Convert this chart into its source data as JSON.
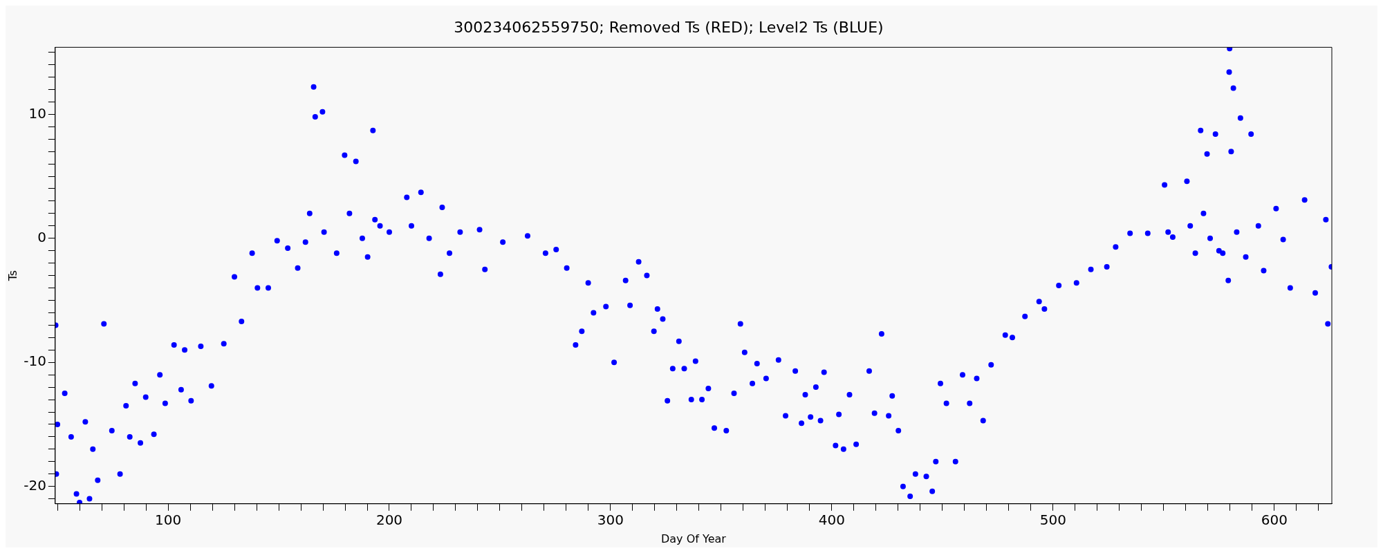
{
  "chart_data": {
    "type": "scatter",
    "title": "300234062559750; Removed Ts (RED); Level2 Ts (BLUE)",
    "xlabel": "Day Of Year",
    "ylabel": "Ts",
    "marker": "circle",
    "xlim": [
      49,
      626
    ],
    "ylim": [
      -21.4,
      15.4
    ],
    "xticks": [
      {
        "value": 50,
        "label": null
      },
      {
        "value": 60,
        "label": null
      },
      {
        "value": 70,
        "label": null
      },
      {
        "value": 80,
        "label": null
      },
      {
        "value": 90,
        "label": null
      },
      100,
      {
        "value": 110,
        "label": null
      },
      {
        "value": 120,
        "label": null
      },
      {
        "value": 130,
        "label": null
      },
      {
        "value": 140,
        "label": null
      },
      {
        "value": 150,
        "label": null
      },
      {
        "value": 160,
        "label": null
      },
      {
        "value": 170,
        "label": null
      },
      {
        "value": 180,
        "label": null
      },
      {
        "value": 190,
        "label": null
      },
      200,
      {
        "value": 210,
        "label": null
      },
      {
        "value": 220,
        "label": null
      },
      {
        "value": 230,
        "label": null
      },
      {
        "value": 240,
        "label": null
      },
      {
        "value": 250,
        "label": null
      },
      {
        "value": 260,
        "label": null
      },
      {
        "value": 270,
        "label": null
      },
      {
        "value": 280,
        "label": null
      },
      {
        "value": 290,
        "label": null
      },
      300,
      {
        "value": 310,
        "label": null
      },
      {
        "value": 320,
        "label": null
      },
      {
        "value": 330,
        "label": null
      },
      {
        "value": 340,
        "label": null
      },
      {
        "value": 350,
        "label": null
      },
      {
        "value": 360,
        "label": null
      },
      {
        "value": 370,
        "label": null
      },
      {
        "value": 380,
        "label": null
      },
      {
        "value": 390,
        "label": null
      },
      400,
      {
        "value": 410,
        "label": null
      },
      {
        "value": 420,
        "label": null
      },
      {
        "value": 430,
        "label": null
      },
      {
        "value": 440,
        "label": null
      },
      {
        "value": 450,
        "label": null
      },
      {
        "value": 460,
        "label": null
      },
      {
        "value": 470,
        "label": null
      },
      {
        "value": 480,
        "label": null
      },
      {
        "value": 490,
        "label": null
      },
      500,
      {
        "value": 510,
        "label": null
      },
      {
        "value": 520,
        "label": null
      },
      {
        "value": 530,
        "label": null
      },
      {
        "value": 540,
        "label": null
      },
      {
        "value": 550,
        "label": null
      },
      {
        "value": 560,
        "label": null
      },
      {
        "value": 570,
        "label": null
      },
      {
        "value": 580,
        "label": null
      },
      {
        "value": 590,
        "label": null
      },
      600,
      {
        "value": 610,
        "label": null
      },
      {
        "value": 620,
        "label": null
      }
    ],
    "yticks": [
      {
        "value": -21,
        "label": null
      },
      -20,
      {
        "value": -19,
        "label": null
      },
      {
        "value": -18,
        "label": null
      },
      {
        "value": -17,
        "label": null
      },
      {
        "value": -16,
        "label": null
      },
      {
        "value": -15,
        "label": null
      },
      {
        "value": -14,
        "label": null
      },
      {
        "value": -13,
        "label": null
      },
      {
        "value": -12,
        "label": null
      },
      {
        "value": -11,
        "label": null
      },
      -10,
      {
        "value": -9,
        "label": null
      },
      {
        "value": -8,
        "label": null
      },
      {
        "value": -7,
        "label": null
      },
      {
        "value": -6,
        "label": null
      },
      {
        "value": -5,
        "label": null
      },
      {
        "value": -4,
        "label": null
      },
      {
        "value": -3,
        "label": null
      },
      {
        "value": -2,
        "label": null
      },
      {
        "value": -1,
        "label": null
      },
      0,
      {
        "value": 1,
        "label": null
      },
      {
        "value": 2,
        "label": null
      },
      {
        "value": 3,
        "label": null
      },
      {
        "value": 4,
        "label": null
      },
      {
        "value": 5,
        "label": null
      },
      {
        "value": 6,
        "label": null
      },
      {
        "value": 7,
        "label": null
      },
      {
        "value": 8,
        "label": null
      },
      {
        "value": 9,
        "label": null
      },
      10,
      {
        "value": 11,
        "label": null
      },
      {
        "value": 12,
        "label": null
      },
      {
        "value": 13,
        "label": null
      },
      {
        "value": 14,
        "label": null
      },
      {
        "value": 15,
        "label": null
      }
    ],
    "series": [
      {
        "color": "#0000ff",
        "x": [
          49.2,
          49.5,
          50,
          53.3,
          56.2,
          58.6,
          60,
          62.6,
          64.5,
          66,
          68.2,
          71,
          74.6,
          78.3,
          81,
          82.7,
          85.1,
          87.5,
          89.9,
          93.6,
          96.3,
          98.7,
          102.7,
          105.9,
          107.5,
          110.4,
          114.8,
          119.6,
          125.2,
          130,
          133.2,
          138,
          140.4,
          145.3,
          149.3,
          154.1,
          158.6,
          162.1,
          164,
          165.8,
          166.5,
          169.8,
          170.5,
          176.2,
          179.8,
          182,
          184.9,
          187.8,
          190.2,
          192.6,
          193.5,
          195.8,
          200,
          207.9,
          210,
          214.3,
          218,
          223.1,
          223.9,
          227.2,
          232,
          240.8,
          243.2,
          251.3,
          262.5,
          270.6,
          275.4,
          280.2,
          284.2,
          287,
          289.9,
          292.3,
          297.9,
          301.6,
          306.8,
          308.8,
          312.7,
          316.4,
          319.6,
          321.2,
          323.6,
          325.7,
          328.1,
          330.9,
          333.3,
          336.5,
          338.4,
          341.3,
          344.2,
          346.9,
          352.3,
          355.8,
          358.7,
          360.6,
          364.1,
          366.2,
          370.3,
          375.9,
          379.1,
          383.5,
          386.3,
          388,
          390.4,
          392.8,
          394.9,
          396.5,
          401.7,
          403.2,
          405.3,
          408,
          411,
          416.9,
          419.3,
          422.5,
          425.7,
          427.3,
          430.1,
          432.2,
          435.4,
          437.8,
          442.7,
          445.4,
          447,
          449.1,
          451.8,
          455.9,
          459.1,
          462.3,
          465.5,
          468.4,
          472,
          478.4,
          481.6,
          487.3,
          493.7,
          496.1,
          502.6,
          510.6,
          517.1,
          524.3,
          528.3,
          534.8,
          542.8,
          550.4,
          552,
          554.1,
          560.5,
          562,
          564.3,
          566.7,
          568,
          569.6,
          571,
          573.4,
          575,
          576.7,
          579.2,
          579.6,
          579.8,
          580.5,
          581.5,
          583,
          584.7,
          587.1,
          589.5,
          592.8,
          595.2,
          600.8,
          604,
          607.2,
          613.7,
          618.5,
          623.3,
          624.2,
          625.8
        ],
        "values": [
          -7,
          -19,
          -15,
          -12.5,
          -16,
          -20.6,
          -21.3,
          -14.8,
          -21,
          -17,
          -19.5,
          -6.9,
          -15.5,
          -19,
          -13.5,
          -16,
          -11.7,
          -16.5,
          -12.8,
          -15.8,
          -11,
          -13.3,
          -8.6,
          -12.2,
          -9,
          -13.1,
          -8.7,
          -11.9,
          -8.5,
          -3.1,
          -6.7,
          -1.2,
          -4,
          -4,
          -0.2,
          -0.8,
          -2.4,
          -0.3,
          2,
          12.2,
          9.8,
          10.2,
          0.5,
          -1.2,
          6.7,
          2,
          6.2,
          0,
          -1.5,
          8.7,
          1.5,
          1,
          0.5,
          3.3,
          1,
          3.7,
          0,
          -2.9,
          2.5,
          -1.2,
          0.5,
          0.7,
          -2.5,
          -0.3,
          0.2,
          -1.2,
          -0.9,
          -2.4,
          -8.6,
          -7.5,
          -3.6,
          -6,
          -5.5,
          -10,
          -3.4,
          -5.4,
          -1.9,
          -3,
          -7.5,
          -5.7,
          -6.5,
          -13.1,
          -10.5,
          -8.3,
          -10.5,
          -13,
          -9.9,
          -13,
          -12.1,
          -15.3,
          -15.5,
          -12.5,
          -6.9,
          -9.2,
          -11.7,
          -10.1,
          -11.3,
          -9.8,
          -14.3,
          -10.7,
          -14.9,
          -12.6,
          -14.4,
          -12,
          -14.7,
          -10.8,
          -16.7,
          -14.2,
          -17,
          -12.6,
          -16.6,
          -10.7,
          -14.1,
          -7.7,
          -14.3,
          -12.7,
          -15.5,
          -20,
          -20.8,
          -19,
          -19.2,
          -20.4,
          -18,
          -11.7,
          -13.3,
          -18,
          -11,
          -13.3,
          -11.3,
          -14.7,
          -10.2,
          -7.8,
          -8,
          -6.3,
          -5.1,
          -5.7,
          -3.8,
          -3.6,
          -2.5,
          -2.3,
          -0.7,
          0.4,
          0.4,
          4.3,
          0.5,
          0.1,
          4.6,
          1,
          -1.2,
          8.7,
          2,
          6.8,
          0,
          8.4,
          -1,
          -1.2,
          -3.4,
          13.4,
          15.3,
          7,
          12.1,
          0.5,
          9.7,
          -1.5,
          8.4,
          1,
          -2.6,
          2.4,
          -0.1,
          -4,
          3.1,
          -4.4,
          1.5,
          -6.9,
          -2.3
        ]
      }
    ]
  }
}
